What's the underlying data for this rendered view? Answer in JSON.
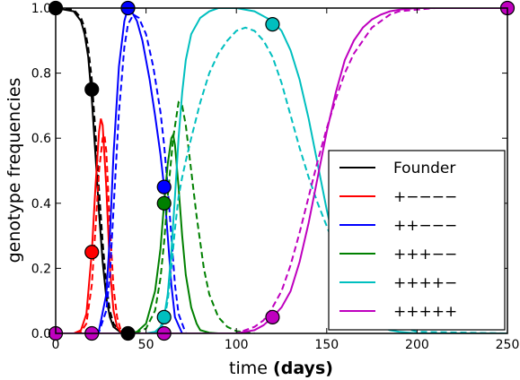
{
  "chart_data": {
    "type": "line",
    "xlabel": "time",
    "xlabel_unit": "(days)",
    "ylabel": "genotype frequencies",
    "xlim": [
      0,
      250
    ],
    "ylim": [
      0,
      1
    ],
    "x_ticks": [
      0,
      50,
      100,
      150,
      200,
      250
    ],
    "y_ticks": [
      0.0,
      0.2,
      0.4,
      0.6,
      0.8,
      1.0
    ],
    "x_tick_labels": [
      "0",
      "50",
      "100",
      "150",
      "200",
      "250"
    ],
    "y_tick_labels": [
      "0.0",
      "0.2",
      "0.4",
      "0.6",
      "0.8",
      "1.0"
    ],
    "grid": false,
    "legend_position": "lower-right",
    "line_styles": [
      "solid",
      "dashed"
    ],
    "series": [
      {
        "name": "Founder",
        "color": "#000000",
        "solid": {
          "x": [
            0,
            10,
            14,
            16,
            18,
            20,
            22,
            24,
            26,
            28,
            30,
            32,
            36,
            40
          ],
          "y": [
            1.0,
            0.99,
            0.96,
            0.92,
            0.85,
            0.72,
            0.55,
            0.37,
            0.22,
            0.11,
            0.05,
            0.02,
            0.003,
            0.0
          ]
        },
        "dashed": {
          "x": [
            0,
            10,
            14,
            16,
            18,
            20,
            22,
            24,
            26,
            28,
            30,
            32,
            36,
            40
          ],
          "y": [
            1.0,
            0.995,
            0.97,
            0.94,
            0.88,
            0.78,
            0.62,
            0.44,
            0.28,
            0.15,
            0.07,
            0.03,
            0.005,
            0.0
          ]
        },
        "markers": [
          {
            "x": 0,
            "y": 1.0
          },
          {
            "x": 20,
            "y": 0.75
          },
          {
            "x": 40,
            "y": 0.0
          }
        ]
      },
      {
        "name": "+−−−−",
        "color": "#ff0000",
        "solid": {
          "x": [
            0,
            10,
            14,
            17,
            20,
            22,
            24,
            25,
            26,
            28,
            30,
            32,
            34,
            36,
            40
          ],
          "y": [
            0.0,
            0.0,
            0.01,
            0.06,
            0.25,
            0.45,
            0.62,
            0.66,
            0.64,
            0.45,
            0.2,
            0.07,
            0.02,
            0.005,
            0.0
          ]
        },
        "dashed": {
          "x": [
            0,
            10,
            14,
            17,
            20,
            22,
            24,
            26,
            27,
            28,
            30,
            32,
            34,
            36,
            40
          ],
          "y": [
            0.0,
            0.0,
            0.005,
            0.03,
            0.15,
            0.32,
            0.5,
            0.6,
            0.61,
            0.56,
            0.33,
            0.14,
            0.05,
            0.01,
            0.0
          ]
        },
        "markers": [
          {
            "x": 20,
            "y": 0.25
          }
        ]
      },
      {
        "name": "++−−−",
        "color": "#0000ff",
        "solid": {
          "x": [
            0,
            20,
            24,
            28,
            30,
            32,
            35,
            38,
            40,
            42,
            45,
            48,
            52,
            55,
            58,
            60,
            62,
            64,
            66,
            70
          ],
          "y": [
            0.0,
            0.0,
            0.01,
            0.12,
            0.3,
            0.55,
            0.82,
            0.96,
            1.0,
            0.99,
            0.96,
            0.9,
            0.78,
            0.67,
            0.55,
            0.45,
            0.3,
            0.15,
            0.05,
            0.0
          ]
        },
        "dashed": {
          "x": [
            0,
            20,
            24,
            28,
            30,
            32,
            35,
            38,
            40,
            43,
            46,
            50,
            54,
            58,
            60,
            62,
            64,
            66,
            68,
            72
          ],
          "y": [
            0.0,
            0.0,
            0.005,
            0.07,
            0.18,
            0.38,
            0.68,
            0.88,
            0.95,
            0.98,
            0.97,
            0.92,
            0.82,
            0.68,
            0.58,
            0.45,
            0.3,
            0.15,
            0.06,
            0.0
          ]
        },
        "markers": [
          {
            "x": 40,
            "y": 1.0
          },
          {
            "x": 60,
            "y": 0.45
          }
        ]
      },
      {
        "name": "+++−−",
        "color": "#008000",
        "solid": {
          "x": [
            0,
            40,
            45,
            50,
            55,
            58,
            60,
            62,
            64,
            65,
            66,
            68,
            70,
            72,
            75,
            78,
            80,
            85,
            90
          ],
          "y": [
            0.0,
            0.0,
            0.005,
            0.03,
            0.13,
            0.26,
            0.4,
            0.52,
            0.6,
            0.61,
            0.58,
            0.45,
            0.3,
            0.18,
            0.08,
            0.03,
            0.01,
            0.002,
            0.0
          ]
        },
        "dashed": {
          "x": [
            0,
            40,
            45,
            50,
            55,
            58,
            60,
            62,
            65,
            68,
            70,
            72,
            75,
            78,
            82,
            85,
            90,
            95,
            100,
            110
          ],
          "y": [
            0.0,
            0.0,
            0.003,
            0.015,
            0.07,
            0.17,
            0.28,
            0.42,
            0.6,
            0.71,
            0.7,
            0.64,
            0.5,
            0.36,
            0.2,
            0.12,
            0.05,
            0.02,
            0.007,
            0.0
          ]
        },
        "markers": [
          {
            "x": 60,
            "y": 0.4
          }
        ]
      },
      {
        "name": "++++−",
        "color": "#00bfbf",
        "solid": {
          "x": [
            0,
            50,
            55,
            58,
            60,
            62,
            64,
            66,
            68,
            70,
            72,
            75,
            80,
            85,
            90,
            95,
            100,
            110,
            120,
            125,
            130,
            135,
            140,
            145,
            150,
            155,
            160,
            165,
            170,
            175,
            180,
            185,
            190,
            200,
            210,
            250
          ],
          "y": [
            0.0,
            0.0,
            0.005,
            0.02,
            0.05,
            0.12,
            0.25,
            0.42,
            0.6,
            0.74,
            0.84,
            0.92,
            0.97,
            0.99,
            1.0,
            1.0,
            1.0,
            0.99,
            0.96,
            0.93,
            0.87,
            0.78,
            0.66,
            0.52,
            0.38,
            0.26,
            0.16,
            0.1,
            0.06,
            0.035,
            0.02,
            0.01,
            0.005,
            0.0,
            0.0,
            0.0
          ]
        },
        "dashed": {
          "x": [
            0,
            55,
            58,
            60,
            62,
            64,
            66,
            68,
            70,
            72,
            75,
            80,
            85,
            90,
            95,
            100,
            105,
            110,
            115,
            120,
            125,
            130,
            135,
            140,
            145,
            150,
            155,
            160,
            170,
            180,
            200,
            250
          ],
          "y": [
            0.0,
            0.0,
            0.01,
            0.04,
            0.1,
            0.2,
            0.32,
            0.42,
            0.48,
            0.53,
            0.6,
            0.71,
            0.8,
            0.86,
            0.9,
            0.93,
            0.94,
            0.93,
            0.9,
            0.85,
            0.77,
            0.67,
            0.57,
            0.48,
            0.4,
            0.33,
            0.26,
            0.2,
            0.1,
            0.04,
            0.005,
            0.0
          ]
        },
        "markers": [
          {
            "x": 60,
            "y": 0.05
          },
          {
            "x": 120,
            "y": 0.95
          }
        ]
      },
      {
        "name": "+++++",
        "color": "#bf00bf",
        "solid": {
          "x": [
            0,
            60,
            100,
            110,
            115,
            120,
            125,
            130,
            135,
            140,
            145,
            150,
            155,
            160,
            165,
            170,
            175,
            180,
            185,
            190,
            200,
            210,
            220,
            250
          ],
          "y": [
            0.0,
            0.0,
            0.0,
            0.01,
            0.025,
            0.05,
            0.08,
            0.13,
            0.22,
            0.34,
            0.48,
            0.62,
            0.74,
            0.84,
            0.9,
            0.94,
            0.965,
            0.98,
            0.99,
            0.995,
            1.0,
            1.0,
            1.0,
            1.0
          ]
        },
        "dashed": {
          "x": [
            0,
            60,
            100,
            110,
            115,
            120,
            125,
            130,
            135,
            140,
            145,
            150,
            155,
            160,
            165,
            170,
            175,
            180,
            185,
            190,
            200,
            210,
            220,
            250
          ],
          "y": [
            0.0,
            0.0,
            0.0,
            0.02,
            0.04,
            0.08,
            0.13,
            0.21,
            0.31,
            0.42,
            0.53,
            0.63,
            0.72,
            0.8,
            0.86,
            0.9,
            0.94,
            0.96,
            0.98,
            0.99,
            0.995,
            1.0,
            1.0,
            1.0
          ]
        },
        "markers": [
          {
            "x": 0,
            "y": 0.0
          },
          {
            "x": 20,
            "y": 0.0
          },
          {
            "x": 60,
            "y": 0.0
          },
          {
            "x": 120,
            "y": 0.05
          },
          {
            "x": 250,
            "y": 1.0
          }
        ]
      }
    ]
  }
}
